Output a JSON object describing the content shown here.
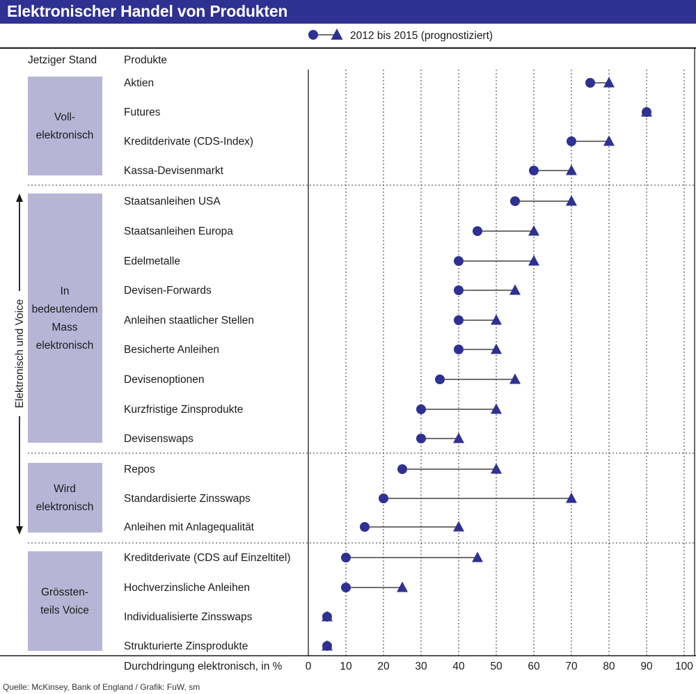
{
  "title": "Elektronischer Handel von Produkten",
  "legend_label": "2012 bis 2015 (prognostiziert)",
  "header": {
    "status_col": "Jetziger Stand",
    "product_col": "Produkte"
  },
  "side_label": "Elektronisch und Voice",
  "source": "Quelle: McKinsey, Bank of England / Grafik: FuW, sm",
  "colors": {
    "brand": "#2e3192",
    "category_box": "#b7b5d6",
    "marker": "#2e3192"
  },
  "chart_data": {
    "type": "dumbbell",
    "title": "Elektronischer Handel von Produkten",
    "xlabel": "Durchdringung elektronisch, in %",
    "xlim": [
      0,
      100
    ],
    "xticks": [
      0,
      10,
      20,
      30,
      40,
      50,
      60,
      70,
      80,
      90,
      100
    ],
    "series": [
      {
        "name": "2012",
        "marker": "circle"
      },
      {
        "name": "2015 (prognostiziert)",
        "marker": "triangle"
      }
    ],
    "groups": [
      {
        "label_lines": [
          "Voll-",
          "elektronisch"
        ],
        "items": [
          {
            "product": "Aktien",
            "start": 75,
            "end": 80
          },
          {
            "product": "Futures",
            "start": 90,
            "end": 90
          },
          {
            "product": "Kreditderivate (CDS-Index)",
            "start": 70,
            "end": 80
          },
          {
            "product": "Kassa-Devisenmarkt",
            "start": 60,
            "end": 70
          }
        ]
      },
      {
        "label_lines": [
          "In",
          "bedeutendem",
          "Mass",
          "elektronisch"
        ],
        "items": [
          {
            "product": "Staatsanleihen USA",
            "start": 55,
            "end": 70
          },
          {
            "product": "Staatsanleihen Europa",
            "start": 45,
            "end": 60
          },
          {
            "product": "Edelmetalle",
            "start": 40,
            "end": 60
          },
          {
            "product": "Devisen-Forwards",
            "start": 40,
            "end": 55
          },
          {
            "product": "Anleihen staatlicher Stellen",
            "start": 40,
            "end": 50
          },
          {
            "product": "Besicherte Anleihen",
            "start": 40,
            "end": 50
          },
          {
            "product": "Devisenoptionen",
            "start": 35,
            "end": 55
          },
          {
            "product": "Kurzfristige Zinsprodukte",
            "start": 30,
            "end": 50
          },
          {
            "product": "Devisenswaps",
            "start": 30,
            "end": 40
          }
        ]
      },
      {
        "label_lines": [
          "Wird",
          "elektronisch"
        ],
        "items": [
          {
            "product": "Repos",
            "start": 25,
            "end": 50
          },
          {
            "product": "Standardisierte Zinsswaps",
            "start": 20,
            "end": 70
          },
          {
            "product": "Anleihen mit Anlagequalität",
            "start": 15,
            "end": 40
          }
        ]
      },
      {
        "label_lines": [
          "Grössten-",
          "teils Voice"
        ],
        "items": [
          {
            "product": "Kreditderivate (CDS auf Einzeltitel)",
            "start": 10,
            "end": 45
          },
          {
            "product": "Hochverzinsliche Anleihen",
            "start": 10,
            "end": 25
          },
          {
            "product": "Individualisierte Zinsswaps",
            "start": 5,
            "end": 5
          },
          {
            "product": "Strukturierte Zinsprodukte",
            "start": 5,
            "end": 5
          }
        ]
      }
    ]
  }
}
